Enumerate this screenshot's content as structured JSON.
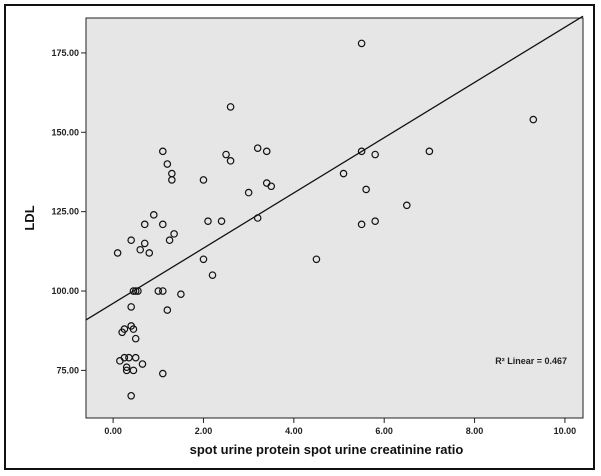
{
  "chart_data": {
    "type": "scatter",
    "title": "",
    "xlabel": "spot urine protein spot urine creatinine ratio",
    "ylabel": "LDL",
    "xlim": [
      -0.6,
      10.4
    ],
    "ylim": [
      60,
      186
    ],
    "xticks": [
      "0.00",
      "2.00",
      "4.00",
      "6.00",
      "8.00",
      "10.00"
    ],
    "yticks": [
      "75.00",
      "100.00",
      "125.00",
      "150.00",
      "175.00"
    ],
    "annotation": "R² Linear = 0.467",
    "fit_line": {
      "intercept": 96.1,
      "slope": 8.7
    },
    "background": "#e6e6e6",
    "grid": false,
    "points": [
      {
        "x": 0.1,
        "y": 112
      },
      {
        "x": 0.15,
        "y": 78
      },
      {
        "x": 0.2,
        "y": 87
      },
      {
        "x": 0.25,
        "y": 79
      },
      {
        "x": 0.25,
        "y": 88
      },
      {
        "x": 0.3,
        "y": 76
      },
      {
        "x": 0.3,
        "y": 75
      },
      {
        "x": 0.35,
        "y": 79
      },
      {
        "x": 0.4,
        "y": 67
      },
      {
        "x": 0.4,
        "y": 95
      },
      {
        "x": 0.4,
        "y": 116
      },
      {
        "x": 0.4,
        "y": 89
      },
      {
        "x": 0.45,
        "y": 75
      },
      {
        "x": 0.45,
        "y": 88
      },
      {
        "x": 0.5,
        "y": 85
      },
      {
        "x": 0.5,
        "y": 79
      },
      {
        "x": 0.5,
        "y": 100
      },
      {
        "x": 0.45,
        "y": 100
      },
      {
        "x": 0.55,
        "y": 100
      },
      {
        "x": 0.6,
        "y": 113
      },
      {
        "x": 0.65,
        "y": 77
      },
      {
        "x": 0.7,
        "y": 121
      },
      {
        "x": 0.7,
        "y": 115
      },
      {
        "x": 0.8,
        "y": 112
      },
      {
        "x": 0.9,
        "y": 124
      },
      {
        "x": 1.0,
        "y": 100
      },
      {
        "x": 1.1,
        "y": 100
      },
      {
        "x": 1.1,
        "y": 74
      },
      {
        "x": 1.1,
        "y": 121
      },
      {
        "x": 1.1,
        "y": 144
      },
      {
        "x": 1.2,
        "y": 140
      },
      {
        "x": 1.2,
        "y": 94
      },
      {
        "x": 1.25,
        "y": 116
      },
      {
        "x": 1.3,
        "y": 137
      },
      {
        "x": 1.3,
        "y": 135
      },
      {
        "x": 1.35,
        "y": 118
      },
      {
        "x": 1.5,
        "y": 99
      },
      {
        "x": 2.0,
        "y": 135
      },
      {
        "x": 2.0,
        "y": 110
      },
      {
        "x": 2.1,
        "y": 122
      },
      {
        "x": 2.2,
        "y": 105
      },
      {
        "x": 2.4,
        "y": 122
      },
      {
        "x": 2.5,
        "y": 143
      },
      {
        "x": 2.6,
        "y": 141
      },
      {
        "x": 2.6,
        "y": 158
      },
      {
        "x": 3.0,
        "y": 131
      },
      {
        "x": 3.2,
        "y": 145
      },
      {
        "x": 3.2,
        "y": 123
      },
      {
        "x": 3.4,
        "y": 134
      },
      {
        "x": 3.4,
        "y": 144
      },
      {
        "x": 3.5,
        "y": 133
      },
      {
        "x": 4.5,
        "y": 110
      },
      {
        "x": 5.1,
        "y": 137
      },
      {
        "x": 5.5,
        "y": 178
      },
      {
        "x": 5.5,
        "y": 144
      },
      {
        "x": 5.5,
        "y": 121
      },
      {
        "x": 5.6,
        "y": 132
      },
      {
        "x": 5.8,
        "y": 143
      },
      {
        "x": 5.8,
        "y": 122
      },
      {
        "x": 6.5,
        "y": 127
      },
      {
        "x": 7.0,
        "y": 144
      },
      {
        "x": 9.3,
        "y": 154
      }
    ]
  }
}
